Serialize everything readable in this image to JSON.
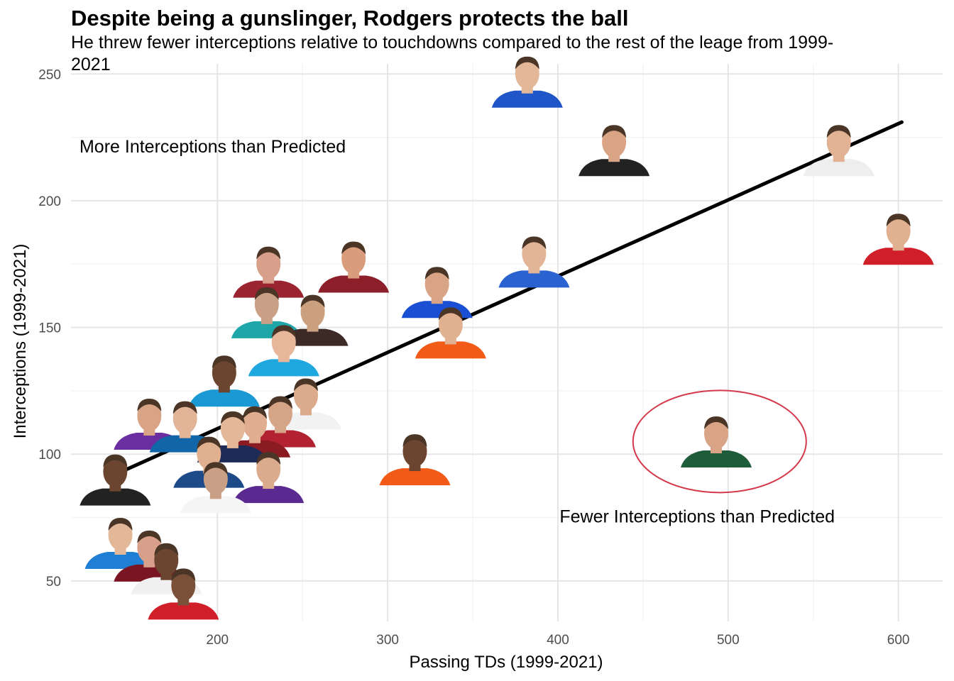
{
  "chart_data": {
    "type": "scatter",
    "title": "Despite being a gunslinger, Rodgers protects the ball",
    "subtitle": "He threw fewer interceptions relative to touchdowns compared to the rest of the leage from 1999-2021",
    "xlabel": "Passing TDs (1999-2021)",
    "ylabel": "Interceptions (1999-2021)",
    "xlim": [
      114,
      626
    ],
    "ylim": [
      34,
      254
    ],
    "xticks": [
      200,
      300,
      400,
      500,
      600
    ],
    "yticks": [
      50,
      100,
      150,
      200,
      250
    ],
    "grid": true,
    "points": [
      {
        "x": 382,
        "y": 244,
        "jersey": "#1f55c7",
        "skin": "#e3b899"
      },
      {
        "x": 433,
        "y": 217,
        "jersey": "#222222",
        "skin": "#d9a486"
      },
      {
        "x": 565,
        "y": 217,
        "jersey": "#eeeeee",
        "skin": "#e1b294"
      },
      {
        "x": 600,
        "y": 182,
        "jersey": "#d11f2a",
        "skin": "#e0b090"
      },
      {
        "x": 386,
        "y": 173,
        "jersey": "#2a62d0",
        "skin": "#e2b498"
      },
      {
        "x": 280,
        "y": 171,
        "jersey": "#8c1f2a",
        "skin": "#d99c7c"
      },
      {
        "x": 230,
        "y": 169,
        "jersey": "#9a2530",
        "skin": "#d8a08a"
      },
      {
        "x": 329,
        "y": 161,
        "jersey": "#1a4fd4",
        "skin": "#d9a486"
      },
      {
        "x": 229,
        "y": 153,
        "jersey": "#1fa6a8",
        "skin": "#c9a086"
      },
      {
        "x": 256,
        "y": 150,
        "jersey": "#3b2a26",
        "skin": "#caa07e"
      },
      {
        "x": 337,
        "y": 145,
        "jersey": "#f25a17",
        "skin": "#e0b090"
      },
      {
        "x": 239,
        "y": 138,
        "jersey": "#1fa8e0",
        "skin": "#e8b69a"
      },
      {
        "x": 204,
        "y": 126,
        "jersey": "#1a99d4",
        "skin": "#6b4530"
      },
      {
        "x": 252,
        "y": 117,
        "jersey": "#f2f2f2",
        "skin": "#dcab8e"
      },
      {
        "x": 237,
        "y": 110,
        "jersey": "#b22230",
        "skin": "#d6a487"
      },
      {
        "x": 222,
        "y": 106,
        "jersey": "#8a1b22",
        "skin": "#e0ad90"
      },
      {
        "x": 160,
        "y": 109,
        "jersey": "#6a2ea0",
        "skin": "#d9a486"
      },
      {
        "x": 181,
        "y": 108,
        "jersey": "#1166aa",
        "skin": "#e2b498"
      },
      {
        "x": 209,
        "y": 104,
        "jersey": "#1d2a55",
        "skin": "#e3b899"
      },
      {
        "x": 316,
        "y": 95,
        "jersey": "#f25a17",
        "skin": "#6b4530"
      },
      {
        "x": 493,
        "y": 102,
        "jersey": "#1f5c3a",
        "skin": "#d9a486"
      },
      {
        "x": 195,
        "y": 94,
        "jersey": "#1d4a88",
        "skin": "#e0b090"
      },
      {
        "x": 140,
        "y": 87,
        "jersey": "#222222",
        "skin": "#6b4530"
      },
      {
        "x": 230,
        "y": 88,
        "jersey": "#5b2a90",
        "skin": "#dcab8e"
      },
      {
        "x": 199,
        "y": 84,
        "jersey": "#f5f5f5",
        "skin": "#c9a086"
      },
      {
        "x": 143,
        "y": 62,
        "jersey": "#1f7fd4",
        "skin": "#e3b899"
      },
      {
        "x": 160,
        "y": 57,
        "jersey": "#7a1524",
        "skin": "#d8a08a"
      },
      {
        "x": 170,
        "y": 52,
        "jersey": "#f0f0f0",
        "skin": "#6b4530"
      },
      {
        "x": 180,
        "y": 42,
        "jersey": "#d11f2a",
        "skin": "#7a5038"
      }
    ],
    "trend_line": {
      "x": [
        140,
        602
      ],
      "y": [
        92,
        231
      ]
    },
    "highlight": {
      "x": 495,
      "y": 105
    },
    "annotations": [
      {
        "text": "More Interceptions than Predicted",
        "x": 119,
        "y": 219
      },
      {
        "text": "Fewer Interceptions than Predicted",
        "x": 401,
        "y": 73
      }
    ]
  }
}
